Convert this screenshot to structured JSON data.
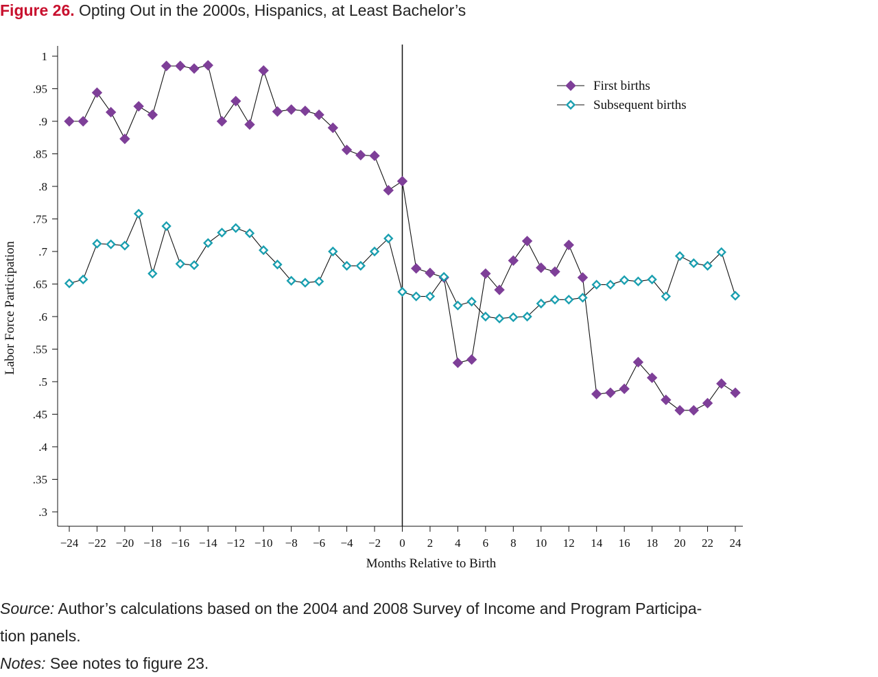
{
  "figure": {
    "label": "Figure 26.",
    "title": "Opting Out in the 2000s, Hispanics, at Least Bachelor’s"
  },
  "source": {
    "label": "Source:",
    "line1": "Author’s calculations based on the 2004 and 2008 Survey of Income and Program Participa-",
    "line2": "tion panels."
  },
  "notes": {
    "label": "Notes:",
    "text": "See notes to figure 23."
  },
  "colors": {
    "first": "#7e3f98",
    "subsequent": "#1a9fb0",
    "line": "#111111"
  },
  "chart_data": {
    "type": "line",
    "title": "Opting Out in the 2000s, Hispanics, at Least Bachelor’s",
    "xlabel": "Months Relative to Birth",
    "ylabel": "Labor Force Participation",
    "xlim": [
      -24,
      24
    ],
    "ylim": [
      0.3,
      1
    ],
    "x_ticks": [
      -24,
      -22,
      -20,
      -18,
      -16,
      -14,
      -12,
      -10,
      -8,
      -6,
      -4,
      -2,
      0,
      2,
      4,
      6,
      8,
      10,
      12,
      14,
      16,
      18,
      20,
      22,
      24
    ],
    "x_tick_labels": [
      "−24",
      "−22",
      "−20",
      "−18",
      "−16",
      "−14",
      "−12",
      "−10",
      "−8",
      "−6",
      "−4",
      "−2",
      "0",
      "2",
      "4",
      "6",
      "8",
      "10",
      "12",
      "14",
      "16",
      "18",
      "20",
      "22",
      "24"
    ],
    "y_ticks": [
      0.3,
      0.35,
      0.4,
      0.45,
      0.5,
      0.55,
      0.6,
      0.65,
      0.7,
      0.75,
      0.8,
      0.85,
      0.9,
      0.95,
      1
    ],
    "y_tick_labels": [
      ".3",
      ".35",
      ".4",
      ".45",
      ".5",
      ".55",
      ".6",
      ".65",
      ".7",
      ".75",
      ".8",
      ".85",
      ".9",
      ".95",
      "1"
    ],
    "vertical_line_at": 0,
    "grid": false,
    "legend_position": "top-right",
    "x": [
      -24,
      -23,
      -22,
      -21,
      -20,
      -19,
      -18,
      -17,
      -16,
      -15,
      -14,
      -13,
      -12,
      -11,
      -10,
      -9,
      -8,
      -7,
      -6,
      -5,
      -4,
      -3,
      -2,
      -1,
      0,
      1,
      2,
      3,
      4,
      5,
      6,
      7,
      8,
      9,
      10,
      11,
      12,
      13,
      14,
      15,
      16,
      17,
      18,
      19,
      20,
      21,
      22,
      23,
      24
    ],
    "series": [
      {
        "name": "First births",
        "marker": "filled-diamond",
        "values": [
          0.9,
          0.9,
          0.944,
          0.914,
          0.873,
          0.923,
          0.91,
          0.985,
          0.985,
          0.981,
          0.986,
          0.9,
          0.931,
          0.895,
          0.978,
          0.915,
          0.918,
          0.916,
          0.91,
          0.89,
          0.856,
          0.848,
          0.847,
          0.794,
          0.808,
          0.674,
          0.667,
          0.66,
          0.529,
          0.534,
          0.666,
          0.641,
          0.686,
          0.716,
          0.675,
          0.669,
          0.71,
          0.66,
          0.481,
          0.483,
          0.489,
          0.53,
          0.506,
          0.472,
          0.456,
          0.456,
          0.467,
          0.497,
          0.483
        ]
      },
      {
        "name": "Subsequent births",
        "marker": "hollow-diamond",
        "values": [
          0.651,
          0.657,
          0.712,
          0.711,
          0.709,
          0.758,
          0.666,
          0.739,
          0.681,
          0.679,
          0.713,
          0.729,
          0.736,
          0.728,
          0.702,
          0.68,
          0.655,
          0.652,
          0.654,
          0.7,
          0.678,
          0.678,
          0.7,
          0.72,
          0.638,
          0.631,
          0.631,
          0.661,
          0.617,
          0.623,
          0.6,
          0.597,
          0.599,
          0.6,
          0.62,
          0.626,
          0.626,
          0.629,
          0.649,
          0.649,
          0.656,
          0.654,
          0.657,
          0.631,
          0.693,
          0.682,
          0.678,
          0.699,
          0.632
        ]
      }
    ]
  }
}
